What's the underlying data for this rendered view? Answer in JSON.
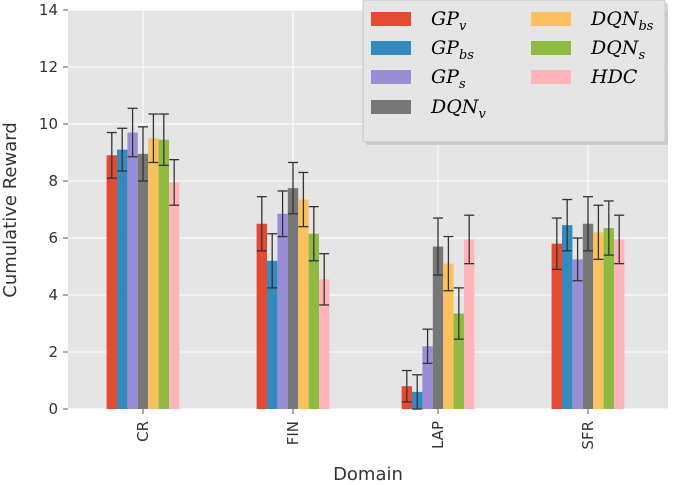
{
  "chart_data": {
    "type": "bar",
    "categories": [
      "CR",
      "FIN",
      "LAP",
      "SFR"
    ],
    "xlabel": "Domain",
    "ylabel": "Cumulative Reward",
    "ylim": [
      0,
      14
    ],
    "yticks": [
      "0",
      "2",
      "4",
      "6",
      "8",
      "10",
      "12",
      "14"
    ],
    "grid": true,
    "legend_position": "top-right",
    "series": [
      {
        "name": "GP_v",
        "label_main": "GP",
        "label_sub": "v",
        "color": "#e24a33",
        "values": [
          8.9,
          6.5,
          0.8,
          5.8
        ],
        "errors": [
          0.8,
          0.95,
          0.55,
          0.9
        ]
      },
      {
        "name": "GP_bs",
        "label_main": "GP",
        "label_sub": "bs",
        "color": "#348abd",
        "values": [
          9.1,
          5.2,
          0.6,
          6.45
        ],
        "errors": [
          0.75,
          0.95,
          0.6,
          0.9
        ]
      },
      {
        "name": "GP_s",
        "label_main": "GP",
        "label_sub": "s",
        "color": "#988ed5",
        "values": [
          9.7,
          6.85,
          2.2,
          5.25
        ],
        "errors": [
          0.85,
          0.8,
          0.6,
          0.75
        ]
      },
      {
        "name": "DQN_v",
        "label_main": "DQN",
        "label_sub": "v",
        "color": "#777777",
        "values": [
          8.95,
          7.75,
          5.7,
          6.5
        ],
        "errors": [
          0.95,
          0.9,
          1.0,
          0.95
        ]
      },
      {
        "name": "DQN_bs",
        "label_main": "DQN",
        "label_sub": "bs",
        "color": "#fbc15e",
        "values": [
          9.5,
          7.35,
          5.1,
          6.2
        ],
        "errors": [
          0.85,
          0.95,
          0.95,
          0.95
        ]
      },
      {
        "name": "DQN_s",
        "label_main": "DQN",
        "label_sub": "s",
        "color": "#8eba42",
        "values": [
          9.45,
          6.15,
          3.35,
          6.35
        ],
        "errors": [
          0.9,
          0.95,
          0.9,
          0.95
        ]
      },
      {
        "name": "HDC",
        "label_main": "HDC",
        "label_sub": "",
        "color": "#ffb5b8",
        "values": [
          7.95,
          4.55,
          5.95,
          5.95
        ],
        "errors": [
          0.8,
          0.9,
          0.85,
          0.85
        ]
      }
    ]
  }
}
